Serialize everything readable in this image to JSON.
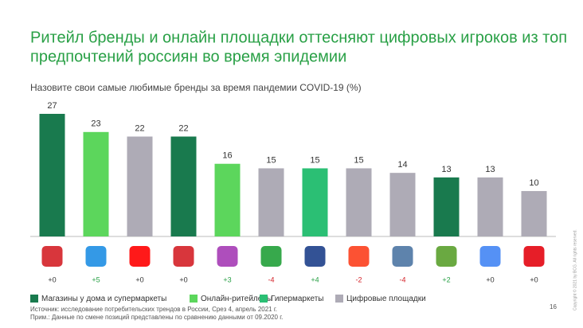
{
  "chart_data": {
    "type": "bar",
    "title": [
      "Ритейл бренды и онлайн площадки оттесняют цифровых игроков из топ",
      "предпочтений россиян во время эпидемии"
    ],
    "subtitle": "Назовите свои самые любимые бренды за время пандемии COVID-19 (%)",
    "categories": [
      null,
      null,
      null,
      null,
      null,
      null,
      null,
      null,
      null,
      null,
      null,
      null
    ],
    "series": [
      {
        "name": "Магазины у дома и супермаркеты",
        "color": "#197a4e",
        "values": [
          27,
          null,
          null,
          22,
          null,
          null,
          null,
          null,
          null,
          13,
          null,
          null
        ]
      },
      {
        "name": "Онлайн-ритейлеры",
        "color": "#5cd65c",
        "values": [
          null,
          23,
          null,
          null,
          16,
          null,
          null,
          null,
          null,
          null,
          null,
          null
        ]
      },
      {
        "name": "Гипермаркеты",
        "color": "#2bbf74",
        "values": [
          null,
          null,
          null,
          null,
          null,
          null,
          15,
          null,
          null,
          null,
          null,
          null
        ]
      },
      {
        "name": "Цифровые площадки",
        "color": "#aeabb6",
        "values": [
          null,
          null,
          22,
          null,
          null,
          15,
          null,
          15,
          14,
          null,
          13,
          10
        ]
      }
    ],
    "changes": [
      "+0",
      "+5",
      "+0",
      "+0",
      "+3",
      "-4",
      "+4",
      "-2",
      "-4",
      "+2",
      "+0",
      "+0"
    ],
    "source": [
      "Источник: исследование потребительских трендов в России, Срез 4, апрель 2021 г.",
      "Прим.: Данные по смене позиций представлены по сравнению данными от 09.2020 г."
    ],
    "page_number": "16",
    "copyright": "Copyright © 2021 by BCG. All rights reserved."
  }
}
